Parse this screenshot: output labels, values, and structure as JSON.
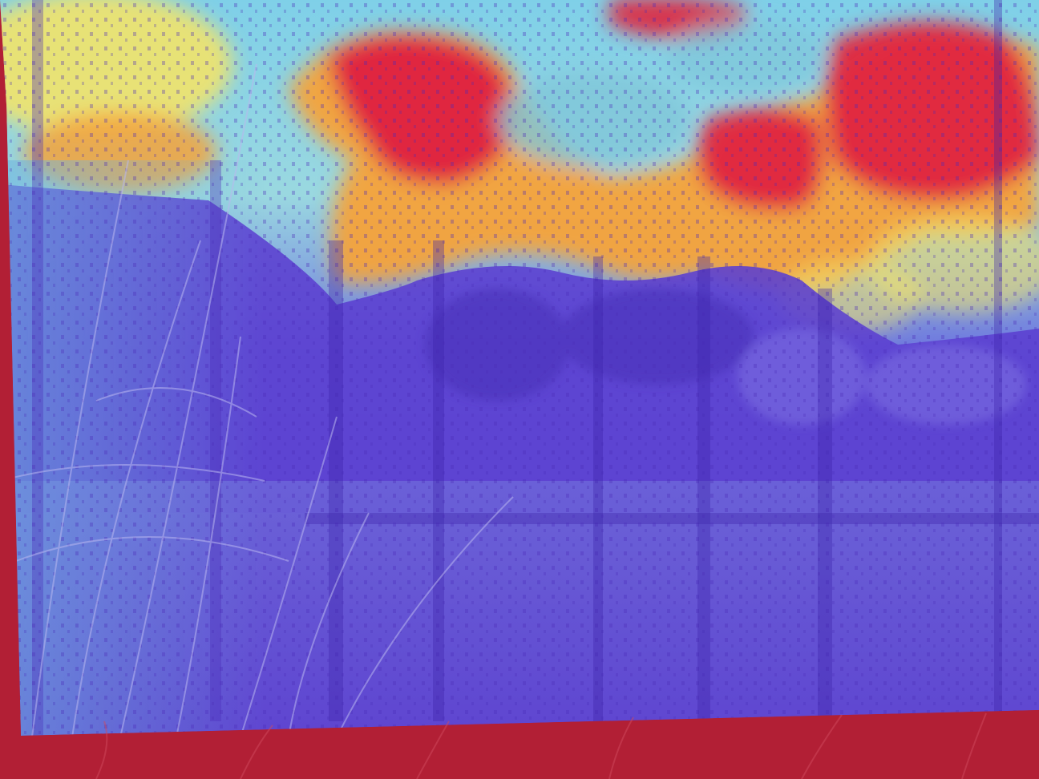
{
  "image": {
    "kind": "photo-with-heatmap-overlay",
    "scene": [
      "reeds",
      "trees",
      "pond",
      "clouds",
      "sky"
    ],
    "colors": {
      "border_red": "#b21f35",
      "heat_low": "#5a3fd0",
      "heat_low_light": "#6f6ee0",
      "heat_cool": "#6fd3e6",
      "heat_mid": "#f2e36a",
      "heat_warm": "#f5a23a",
      "heat_high": "#e0263f"
    }
  }
}
